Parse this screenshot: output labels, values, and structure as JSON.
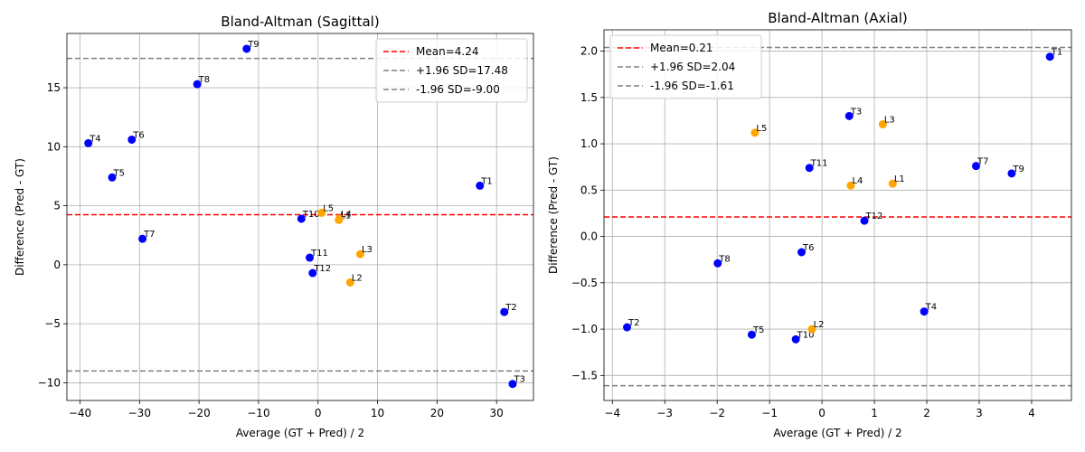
{
  "chart_data": [
    {
      "type": "scatter",
      "title": "Bland-Altman (Sagittal)",
      "xlabel": "Average (GT + Pred) / 2",
      "ylabel": "Difference (Pred - GT)",
      "xlim": [
        -42.2,
        36.2
      ],
      "ylim": [
        -11.5,
        19.6
      ],
      "xticks": [
        -40,
        -30,
        -20,
        -10,
        0,
        10,
        20,
        30
      ],
      "yticks": [
        -10,
        -5,
        0,
        5,
        10,
        15
      ],
      "grid": true,
      "legend_position": "upper right",
      "reference_lines": [
        {
          "label": "Mean=4.24",
          "value": 4.24,
          "color": "#ff0000"
        },
        {
          "label": "+1.96 SD=17.48",
          "value": 17.48,
          "color": "#808080"
        },
        {
          "label": "-1.96 SD=-9.00",
          "value": -9.0,
          "color": "#808080"
        }
      ],
      "points": [
        {
          "label": "T1",
          "x": 27.2,
          "y": 6.7,
          "color": "#0000ff"
        },
        {
          "label": "T2",
          "x": 31.3,
          "y": -4.0,
          "color": "#0000ff"
        },
        {
          "label": "T3",
          "x": 32.7,
          "y": -10.1,
          "color": "#0000ff"
        },
        {
          "label": "T4",
          "x": -38.6,
          "y": 10.3,
          "color": "#0000ff"
        },
        {
          "label": "T5",
          "x": -34.6,
          "y": 7.4,
          "color": "#0000ff"
        },
        {
          "label": "T6",
          "x": -31.3,
          "y": 10.6,
          "color": "#0000ff"
        },
        {
          "label": "T7",
          "x": -29.5,
          "y": 2.2,
          "color": "#0000ff"
        },
        {
          "label": "T8",
          "x": -20.3,
          "y": 15.3,
          "color": "#0000ff"
        },
        {
          "label": "T9",
          "x": -12.0,
          "y": 18.3,
          "color": "#0000ff"
        },
        {
          "label": "T10",
          "x": -2.8,
          "y": 3.9,
          "color": "#0000ff"
        },
        {
          "label": "T11",
          "x": -1.4,
          "y": 0.6,
          "color": "#0000ff"
        },
        {
          "label": "T12",
          "x": -0.9,
          "y": -0.7,
          "color": "#0000ff"
        },
        {
          "label": "L1",
          "x": 3.5,
          "y": 3.8,
          "color": "#ffa500"
        },
        {
          "label": "L2",
          "x": 5.4,
          "y": -1.5,
          "color": "#ffa500"
        },
        {
          "label": "L3",
          "x": 7.1,
          "y": 0.9,
          "color": "#ffa500"
        },
        {
          "label": "L4",
          "x": 3.6,
          "y": 3.9,
          "color": "#ffa500"
        },
        {
          "label": "L5",
          "x": 0.6,
          "y": 4.4,
          "color": "#ffa500"
        }
      ]
    },
    {
      "type": "scatter",
      "title": "Bland-Altman (Axial)",
      "xlabel": "Average (GT + Pred) / 2",
      "ylabel": "Difference (Pred - GT)",
      "xlim": [
        -4.16,
        4.76
      ],
      "ylim": [
        -1.77,
        2.23
      ],
      "xticks": [
        -4,
        -3,
        -2,
        -1,
        0,
        1,
        2,
        3,
        4
      ],
      "yticks": [
        -1.5,
        -1.0,
        -0.5,
        0.0,
        0.5,
        1.0,
        1.5,
        2.0
      ],
      "ytick_labels": [
        "−1.5",
        "−1.0",
        "−0.5",
        "0.0",
        "0.5",
        "1.0",
        "1.5",
        "2.0"
      ],
      "grid": true,
      "legend_position": "upper left",
      "reference_lines": [
        {
          "label": "Mean=0.21",
          "value": 0.21,
          "color": "#ff0000"
        },
        {
          "label": "+1.96 SD=2.04",
          "value": 2.04,
          "color": "#808080"
        },
        {
          "label": "-1.96 SD=-1.61",
          "value": -1.61,
          "color": "#808080"
        }
      ],
      "points": [
        {
          "label": "T1",
          "x": 4.35,
          "y": 1.94,
          "color": "#0000ff"
        },
        {
          "label": "T2",
          "x": -3.72,
          "y": -0.98,
          "color": "#0000ff"
        },
        {
          "label": "T3",
          "x": 0.52,
          "y": 1.3,
          "color": "#0000ff"
        },
        {
          "label": "T4",
          "x": 1.95,
          "y": -0.81,
          "color": "#0000ff"
        },
        {
          "label": "T5",
          "x": -1.34,
          "y": -1.06,
          "color": "#0000ff"
        },
        {
          "label": "T6",
          "x": -0.39,
          "y": -0.17,
          "color": "#0000ff"
        },
        {
          "label": "T7",
          "x": 2.94,
          "y": 0.76,
          "color": "#0000ff"
        },
        {
          "label": "T8",
          "x": -1.99,
          "y": -0.29,
          "color": "#0000ff"
        },
        {
          "label": "T9",
          "x": 3.62,
          "y": 0.68,
          "color": "#0000ff"
        },
        {
          "label": "T10",
          "x": -0.5,
          "y": -1.11,
          "color": "#0000ff"
        },
        {
          "label": "T11",
          "x": -0.24,
          "y": 0.74,
          "color": "#0000ff"
        },
        {
          "label": "T12",
          "x": 0.81,
          "y": 0.17,
          "color": "#0000ff"
        },
        {
          "label": "L1",
          "x": 1.35,
          "y": 0.57,
          "color": "#ffa500"
        },
        {
          "label": "L2",
          "x": -0.19,
          "y": -1.0,
          "color": "#ffa500"
        },
        {
          "label": "L3",
          "x": 1.16,
          "y": 1.21,
          "color": "#ffa500"
        },
        {
          "label": "L4",
          "x": 0.55,
          "y": 0.55,
          "color": "#ffa500"
        },
        {
          "label": "L5",
          "x": -1.28,
          "y": 1.12,
          "color": "#ffa500"
        }
      ]
    }
  ]
}
